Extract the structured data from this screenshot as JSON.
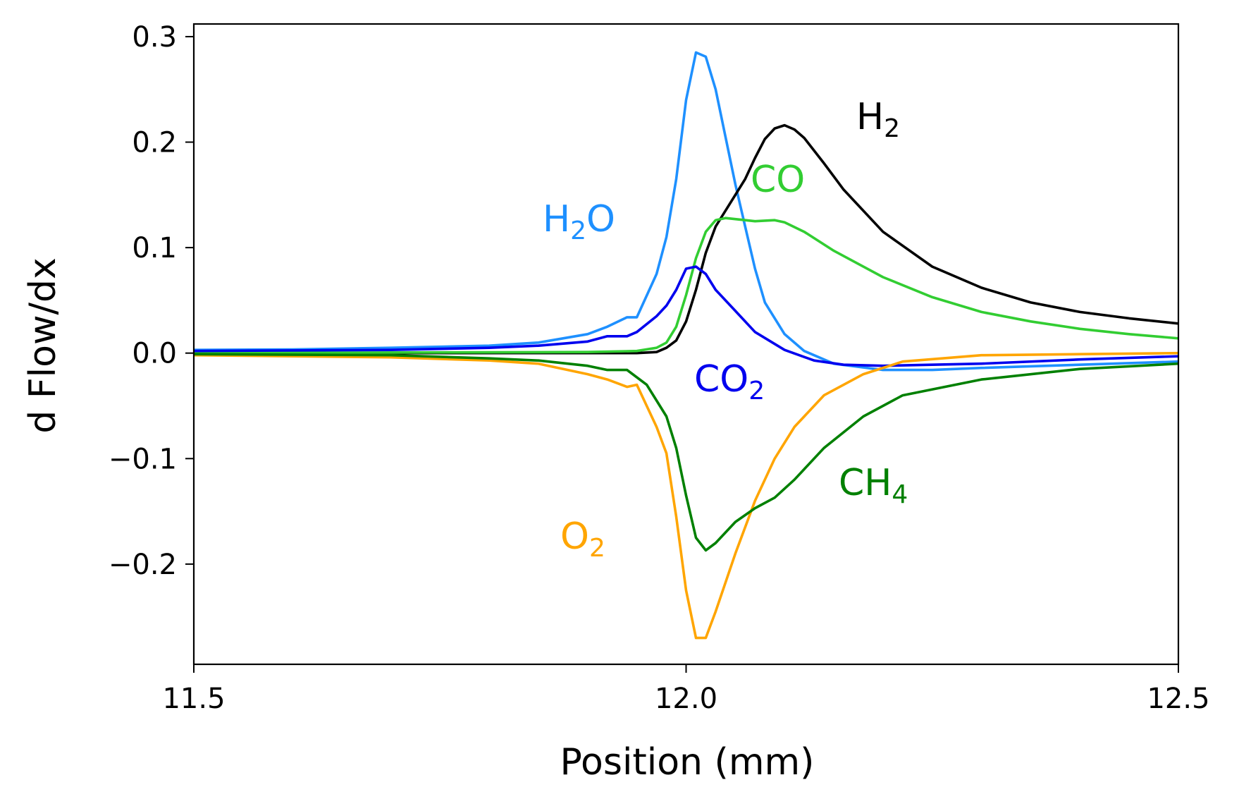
{
  "chart_data": {
    "type": "line",
    "xlabel": "Position (mm)",
    "ylabel": "d Flow/dx",
    "xlim": [
      11.5,
      12.5
    ],
    "ylim": [
      -0.295,
      0.312
    ],
    "xticks": [
      11.5,
      12.0,
      12.5
    ],
    "xtick_labels": [
      "11.5",
      "12.0",
      "12.5"
    ],
    "yticks": [
      -0.2,
      -0.1,
      0.0,
      0.1,
      0.2,
      0.3
    ],
    "ytick_labels": [
      "−0.2",
      "−0.1",
      "0.0",
      "0.1",
      "0.2",
      "0.3"
    ],
    "grid": false,
    "legend": "none (inline series labels)",
    "series": [
      {
        "name": "H2O",
        "label_main": "H",
        "label_sub": "2",
        "label_tail": "O",
        "color": "#1e90ff",
        "points": [
          [
            11.5,
            0.003
          ],
          [
            11.6,
            0.0035
          ],
          [
            11.7,
            0.005
          ],
          [
            11.8,
            0.007
          ],
          [
            11.85,
            0.01
          ],
          [
            11.9,
            0.018
          ],
          [
            11.92,
            0.025
          ],
          [
            11.94,
            0.034
          ],
          [
            11.95,
            0.034
          ],
          [
            11.97,
            0.075
          ],
          [
            11.98,
            0.11
          ],
          [
            11.99,
            0.165
          ],
          [
            12.0,
            0.24
          ],
          [
            12.01,
            0.285
          ],
          [
            12.02,
            0.281
          ],
          [
            12.03,
            0.25
          ],
          [
            12.04,
            0.205
          ],
          [
            12.05,
            0.16
          ],
          [
            12.06,
            0.12
          ],
          [
            12.07,
            0.08
          ],
          [
            12.08,
            0.048
          ],
          [
            12.1,
            0.018
          ],
          [
            12.12,
            0.002
          ],
          [
            12.15,
            -0.01
          ],
          [
            12.2,
            -0.016
          ],
          [
            12.25,
            -0.016
          ],
          [
            12.3,
            -0.014
          ],
          [
            12.4,
            -0.011
          ],
          [
            12.5,
            -0.008
          ]
        ]
      },
      {
        "name": "H2",
        "label_main": "H",
        "label_sub": "2",
        "label_tail": "",
        "color": "#000000",
        "points": [
          [
            11.5,
            0.0
          ],
          [
            11.9,
            0.0
          ],
          [
            11.95,
            0.0
          ],
          [
            11.97,
            0.001
          ],
          [
            11.98,
            0.005
          ],
          [
            11.99,
            0.012
          ],
          [
            12.0,
            0.03
          ],
          [
            12.01,
            0.06
          ],
          [
            12.02,
            0.095
          ],
          [
            12.03,
            0.12
          ],
          [
            12.05,
            0.15
          ],
          [
            12.06,
            0.165
          ],
          [
            12.07,
            0.185
          ],
          [
            12.08,
            0.203
          ],
          [
            12.09,
            0.213
          ],
          [
            12.1,
            0.216
          ],
          [
            12.11,
            0.212
          ],
          [
            12.12,
            0.204
          ],
          [
            12.14,
            0.18
          ],
          [
            12.16,
            0.155
          ],
          [
            12.2,
            0.115
          ],
          [
            12.25,
            0.082
          ],
          [
            12.3,
            0.062
          ],
          [
            12.35,
            0.048
          ],
          [
            12.4,
            0.039
          ],
          [
            12.45,
            0.033
          ],
          [
            12.5,
            0.028
          ]
        ]
      },
      {
        "name": "CO",
        "label_main": "CO",
        "label_sub": "",
        "label_tail": "",
        "color": "#32cd32",
        "points": [
          [
            11.5,
            0.0
          ],
          [
            11.9,
            0.001
          ],
          [
            11.95,
            0.002
          ],
          [
            11.97,
            0.005
          ],
          [
            11.98,
            0.01
          ],
          [
            11.99,
            0.025
          ],
          [
            12.0,
            0.055
          ],
          [
            12.01,
            0.09
          ],
          [
            12.02,
            0.115
          ],
          [
            12.03,
            0.126
          ],
          [
            12.04,
            0.128
          ],
          [
            12.05,
            0.127
          ],
          [
            12.07,
            0.125
          ],
          [
            12.09,
            0.126
          ],
          [
            12.1,
            0.124
          ],
          [
            12.12,
            0.115
          ],
          [
            12.15,
            0.097
          ],
          [
            12.2,
            0.072
          ],
          [
            12.25,
            0.053
          ],
          [
            12.3,
            0.039
          ],
          [
            12.35,
            0.03
          ],
          [
            12.4,
            0.023
          ],
          [
            12.45,
            0.018
          ],
          [
            12.5,
            0.014
          ]
        ]
      },
      {
        "name": "CO2",
        "label_main": "CO",
        "label_sub": "2",
        "label_tail": "",
        "color": "#0000ee",
        "points": [
          [
            11.5,
            0.002
          ],
          [
            11.7,
            0.003
          ],
          [
            11.8,
            0.005
          ],
          [
            11.85,
            0.007
          ],
          [
            11.9,
            0.011
          ],
          [
            11.92,
            0.016
          ],
          [
            11.94,
            0.016
          ],
          [
            11.95,
            0.02
          ],
          [
            11.97,
            0.035
          ],
          [
            11.98,
            0.045
          ],
          [
            11.99,
            0.06
          ],
          [
            12.0,
            0.08
          ],
          [
            12.01,
            0.082
          ],
          [
            12.02,
            0.075
          ],
          [
            12.03,
            0.06
          ],
          [
            12.05,
            0.04
          ],
          [
            12.07,
            0.02
          ],
          [
            12.1,
            0.003
          ],
          [
            12.13,
            -0.007
          ],
          [
            12.16,
            -0.011
          ],
          [
            12.2,
            -0.012
          ],
          [
            12.3,
            -0.01
          ],
          [
            12.4,
            -0.006
          ],
          [
            12.5,
            -0.003
          ]
        ]
      },
      {
        "name": "O2",
        "label_main": "O",
        "label_sub": "2",
        "label_tail": "",
        "color": "#ffa500",
        "points": [
          [
            11.5,
            -0.002
          ],
          [
            11.7,
            -0.004
          ],
          [
            11.8,
            -0.007
          ],
          [
            11.85,
            -0.01
          ],
          [
            11.9,
            -0.02
          ],
          [
            11.92,
            -0.025
          ],
          [
            11.94,
            -0.032
          ],
          [
            11.95,
            -0.03
          ],
          [
            11.97,
            -0.07
          ],
          [
            11.98,
            -0.095
          ],
          [
            11.99,
            -0.155
          ],
          [
            12.0,
            -0.225
          ],
          [
            12.01,
            -0.27
          ],
          [
            12.02,
            -0.27
          ],
          [
            12.03,
            -0.245
          ],
          [
            12.05,
            -0.19
          ],
          [
            12.07,
            -0.14
          ],
          [
            12.09,
            -0.1
          ],
          [
            12.11,
            -0.07
          ],
          [
            12.14,
            -0.04
          ],
          [
            12.18,
            -0.02
          ],
          [
            12.22,
            -0.008
          ],
          [
            12.3,
            -0.002
          ],
          [
            12.4,
            -0.001
          ],
          [
            12.5,
            0.0
          ]
        ]
      },
      {
        "name": "CH4",
        "label_main": "CH",
        "label_sub": "4",
        "label_tail": "",
        "color": "#008000",
        "points": [
          [
            11.5,
            -0.001
          ],
          [
            11.7,
            -0.002
          ],
          [
            11.8,
            -0.005
          ],
          [
            11.85,
            -0.007
          ],
          [
            11.9,
            -0.012
          ],
          [
            11.92,
            -0.016
          ],
          [
            11.94,
            -0.016
          ],
          [
            11.96,
            -0.03
          ],
          [
            11.97,
            -0.045
          ],
          [
            11.98,
            -0.06
          ],
          [
            11.99,
            -0.09
          ],
          [
            12.0,
            -0.135
          ],
          [
            12.01,
            -0.175
          ],
          [
            12.02,
            -0.187
          ],
          [
            12.03,
            -0.18
          ],
          [
            12.05,
            -0.16
          ],
          [
            12.07,
            -0.147
          ],
          [
            12.09,
            -0.137
          ],
          [
            12.11,
            -0.12
          ],
          [
            12.14,
            -0.09
          ],
          [
            12.18,
            -0.06
          ],
          [
            12.22,
            -0.04
          ],
          [
            12.3,
            -0.025
          ],
          [
            12.4,
            -0.015
          ],
          [
            12.5,
            -0.01
          ]
        ]
      }
    ]
  }
}
